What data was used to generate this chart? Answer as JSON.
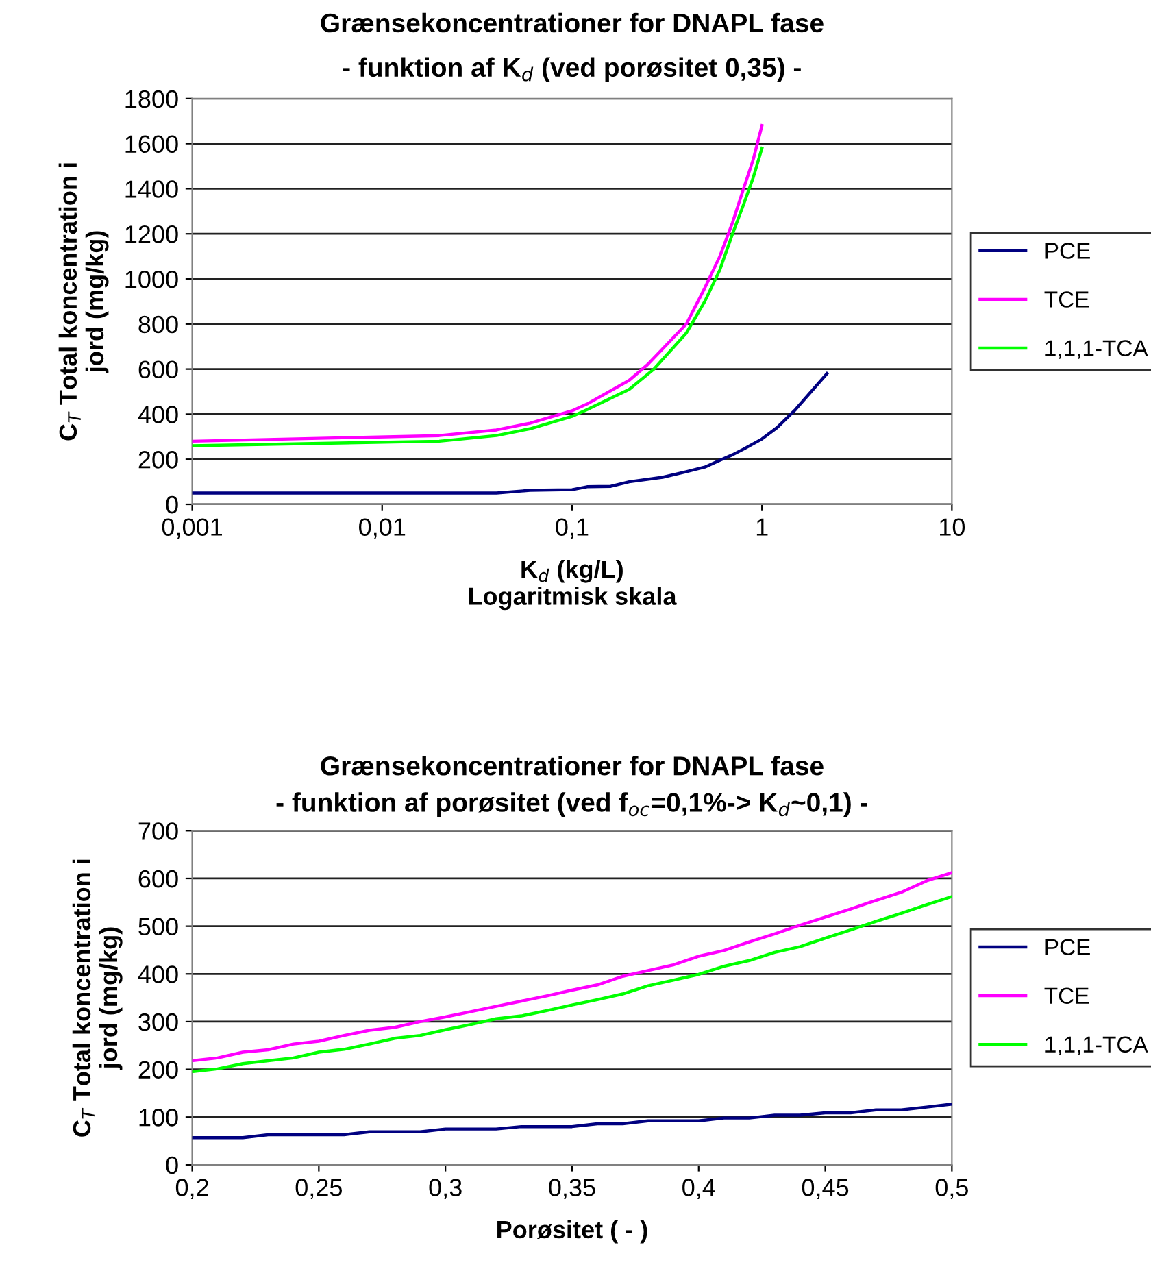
{
  "chart_data": [
    {
      "type": "line",
      "title": "Grænsekoncentrationer for DNAPL fase",
      "subtitle": "- funktion af K$_{d}$ (ved porøsitet 0,35) -",
      "xlabel": "K$_{d}$ (kg/L)\nLogaritmisk skala",
      "ylabel": "C$_{T}$ Total koncentration i\njord (mg/kg)",
      "log": "x",
      "xlim": [
        0.001,
        10
      ],
      "xticks": [
        {
          "value": 0.001,
          "label": "0,001"
        },
        {
          "value": 0.01,
          "label": "0,01"
        },
        {
          "value": 0.1,
          "label": "0,1"
        },
        {
          "value": 1,
          "label": "1"
        },
        {
          "value": 10,
          "label": "10"
        }
      ],
      "ylim": [
        0,
        1800
      ],
      "yticks": [
        0,
        200,
        400,
        600,
        800,
        1000,
        1200,
        1400,
        1600,
        1800
      ],
      "grid": "y",
      "legend": "right",
      "marker": "none",
      "line_style": "solid",
      "series": [
        {
          "name": "PCE",
          "color": "#000080",
          "x": [
            0.001,
            0.04,
            0.06,
            0.1,
            0.12,
            0.16,
            0.2,
            0.3,
            0.4,
            0.5,
            0.6,
            0.7,
            0.8,
            1.0,
            1.2,
            1.5,
            2.2
          ],
          "values": [
            50,
            50,
            62,
            65,
            78,
            80,
            100,
            120,
            145,
            165,
            195,
            220,
            245,
            290,
            340,
            420,
            580
          ]
        },
        {
          "name": "TCE",
          "color": "#ff00ff",
          "x": [
            0.001,
            0.02,
            0.04,
            0.06,
            0.1,
            0.12,
            0.2,
            0.25,
            0.4,
            0.5,
            0.6,
            0.7,
            0.8,
            0.9,
            1.0
          ],
          "values": [
            280,
            305,
            330,
            360,
            415,
            445,
            550,
            620,
            800,
            960,
            1100,
            1250,
            1400,
            1530,
            1680
          ]
        },
        {
          "name": "1,1,1-TCA",
          "color": "#00ff00",
          "x": [
            0.001,
            0.02,
            0.04,
            0.06,
            0.1,
            0.12,
            0.2,
            0.27,
            0.4,
            0.5,
            0.6,
            0.7,
            0.8,
            0.9,
            1.0
          ],
          "values": [
            260,
            280,
            305,
            335,
            390,
            420,
            510,
            600,
            760,
            900,
            1040,
            1200,
            1330,
            1450,
            1580
          ]
        }
      ]
    },
    {
      "type": "line",
      "title": "Grænsekoncentrationer for DNAPL fase",
      "subtitle": "- funktion af porøsitet (ved f$_{oc}$=0,1%-> K$_{d}$~0,1) -",
      "xlabel": "Porøsitet ( - )",
      "ylabel": "C$_{T}$ Total koncentration i\njord (mg/kg)",
      "xlim": [
        0.2,
        0.5
      ],
      "xticks": [
        {
          "value": 0.2,
          "label": "0,2"
        },
        {
          "value": 0.25,
          "label": "0,25"
        },
        {
          "value": 0.3,
          "label": "0,3"
        },
        {
          "value": 0.35,
          "label": "0,35"
        },
        {
          "value": 0.4,
          "label": "0,4"
        },
        {
          "value": 0.45,
          "label": "0,45"
        },
        {
          "value": 0.5,
          "label": "0,5"
        }
      ],
      "ylim": [
        0,
        700
      ],
      "yticks": [
        0,
        100,
        200,
        300,
        400,
        500,
        600,
        700
      ],
      "grid": "y",
      "legend": "right",
      "marker": "none",
      "line_style": "solid",
      "x": [
        0.2,
        0.21,
        0.22,
        0.23,
        0.24,
        0.25,
        0.26,
        0.27,
        0.28,
        0.29,
        0.3,
        0.31,
        0.32,
        0.33,
        0.34,
        0.35,
        0.36,
        0.37,
        0.38,
        0.39,
        0.4,
        0.41,
        0.42,
        0.43,
        0.44,
        0.45,
        0.46,
        0.47,
        0.48,
        0.49,
        0.5
      ],
      "series": [
        {
          "name": "PCE",
          "color": "#000080",
          "values": [
            57,
            57,
            57,
            63,
            63,
            63,
            63,
            69,
            69,
            69,
            75,
            75,
            75,
            80,
            80,
            80,
            86,
            86,
            92,
            92,
            92,
            98,
            98,
            104,
            104,
            109,
            109,
            115,
            115,
            121,
            127
          ]
        },
        {
          "name": "TCE",
          "color": "#ff00ff",
          "values": [
            218,
            224,
            236,
            241,
            253,
            259,
            271,
            282,
            288,
            300,
            310,
            321,
            332,
            343,
            354,
            366,
            377,
            395,
            407,
            419,
            437,
            449,
            467,
            484,
            502,
            519,
            536,
            554,
            571,
            595,
            612
          ]
        },
        {
          "name": "1,1,1-TCA",
          "color": "#00ff00",
          "values": [
            195,
            201,
            212,
            218,
            224,
            236,
            242,
            253,
            265,
            271,
            283,
            294,
            306,
            312,
            323,
            335,
            346,
            358,
            375,
            387,
            399,
            416,
            428,
            445,
            457,
            475,
            492,
            510,
            527,
            545,
            562
          ]
        }
      ]
    }
  ]
}
